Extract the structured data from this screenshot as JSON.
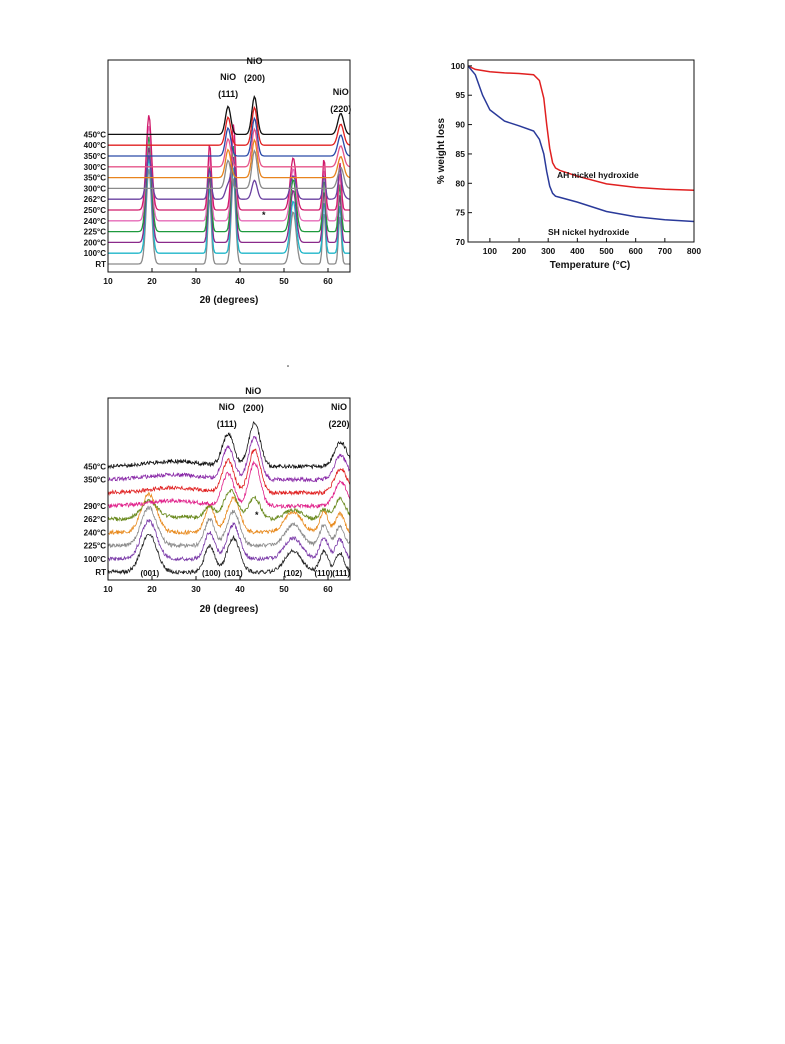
{
  "chart_data": [
    {
      "type": "line",
      "xlabel": "2θ (degrees)",
      "ylabel": "",
      "xlim": [
        10,
        65
      ],
      "xticks": [
        10,
        20,
        30,
        40,
        50,
        60
      ],
      "peak_labels": [
        {
          "name": "NiO",
          "hkl": "(111)",
          "x": 37.3
        },
        {
          "name": "NiO",
          "hkl": "(200)",
          "x": 43.3
        },
        {
          "name": "NiO",
          "hkl": "(220)",
          "x": 62.9
        }
      ],
      "annotations": [
        "*"
      ],
      "series": [
        {
          "name": "RT",
          "color": "#8a8a8a",
          "type": "hydroxide"
        },
        {
          "name": "100°C",
          "color": "#1fb6c9",
          "type": "hydroxide"
        },
        {
          "name": "200°C",
          "color": "#8a2a8a",
          "type": "hydroxide"
        },
        {
          "name": "225°C",
          "color": "#1e9a3e",
          "type": "hydroxide"
        },
        {
          "name": "240°C",
          "color": "#e66bb8",
          "type": "hydroxide"
        },
        {
          "name": "250°C",
          "color": "#d01a6a",
          "type": "hydroxide"
        },
        {
          "name": "262°C",
          "color": "#6a40a0",
          "type": "mixed"
        },
        {
          "name": "300°C",
          "color": "#8a8a8a",
          "type": "nio"
        },
        {
          "name": "350°C",
          "color": "#e8841e",
          "type": "nio"
        },
        {
          "name": "300°C",
          "color": "#e6558a",
          "type": "nio"
        },
        {
          "name": "350°C",
          "color": "#2a4aa8",
          "type": "nio"
        },
        {
          "name": "400°C",
          "color": "#e02020",
          "type": "nio"
        },
        {
          "name": "450°C",
          "color": "#111111",
          "type": "nio"
        }
      ]
    },
    {
      "type": "line",
      "xlabel": "Temperature (°C)",
      "ylabel": "% weight loss",
      "xlim": [
        25,
        800
      ],
      "ylim": [
        70,
        101
      ],
      "xticks": [
        100,
        200,
        300,
        400,
        500,
        600,
        700,
        800
      ],
      "yticks": [
        70,
        75,
        80,
        85,
        90,
        95,
        100
      ],
      "series": [
        {
          "name": "AH nickel hydroxide",
          "color": "#e02020",
          "x": [
            25,
            50,
            100,
            150,
            200,
            250,
            270,
            285,
            295,
            305,
            315,
            325,
            340,
            400,
            500,
            600,
            700,
            800
          ],
          "y": [
            100,
            99.4,
            99.0,
            98.8,
            98.7,
            98.5,
            97.5,
            94.5,
            90,
            86,
            83.5,
            82.6,
            82.2,
            81.2,
            79.9,
            79.3,
            79.0,
            78.8
          ]
        },
        {
          "name": "SH nickel hydroxide",
          "color": "#2a3a9a",
          "x": [
            25,
            50,
            75,
            100,
            150,
            200,
            250,
            270,
            285,
            295,
            305,
            315,
            325,
            340,
            400,
            500,
            600,
            700,
            800
          ],
          "y": [
            100,
            98.5,
            95,
            92.5,
            90.6,
            89.8,
            88.9,
            87.5,
            85,
            82,
            79.5,
            78.3,
            77.8,
            77.6,
            76.8,
            75.2,
            74.3,
            73.8,
            73.5
          ]
        }
      ]
    },
    {
      "type": "line",
      "xlabel": "2θ (degrees)",
      "ylabel": "",
      "xlim": [
        10,
        65
      ],
      "xticks": [
        10,
        20,
        30,
        40,
        50,
        60
      ],
      "peak_labels": [
        {
          "name": "NiO",
          "hkl": "(111)",
          "x": 37.0
        },
        {
          "name": "NiO",
          "hkl": "(200)",
          "x": 43.0
        },
        {
          "name": "NiO",
          "hkl": "(220)",
          "x": 62.5
        }
      ],
      "reflections": [
        {
          "hkl": "(001)",
          "x": 19.5
        },
        {
          "hkl": "(100)",
          "x": 33.5
        },
        {
          "hkl": "(101)",
          "x": 38.5
        },
        {
          "hkl": "(102)",
          "x": 52.0
        },
        {
          "hkl": "(110)",
          "x": 59.0
        },
        {
          "hkl": "(111)",
          "x": 63.0
        }
      ],
      "annotations": [
        "*"
      ],
      "series": [
        {
          "name": "RT",
          "color": "#222222",
          "type": "hydroxide"
        },
        {
          "name": "100°C",
          "color": "#7a3aa8",
          "type": "hydroxide"
        },
        {
          "name": "225°C",
          "color": "#8a8a8a",
          "type": "hydroxide"
        },
        {
          "name": "240°C",
          "color": "#e88a1e",
          "type": "hydroxide"
        },
        {
          "name": "262°C",
          "color": "#6a8a1e",
          "type": "mixed"
        },
        {
          "name": "290°C",
          "color": "#e0208a",
          "type": "nio"
        },
        {
          "name": "",
          "color": "#e02020",
          "type": "nio"
        },
        {
          "name": "350°C",
          "color": "#8a2aa8",
          "type": "nio"
        },
        {
          "name": "450°C",
          "color": "#111111",
          "type": "nio"
        }
      ]
    }
  ]
}
